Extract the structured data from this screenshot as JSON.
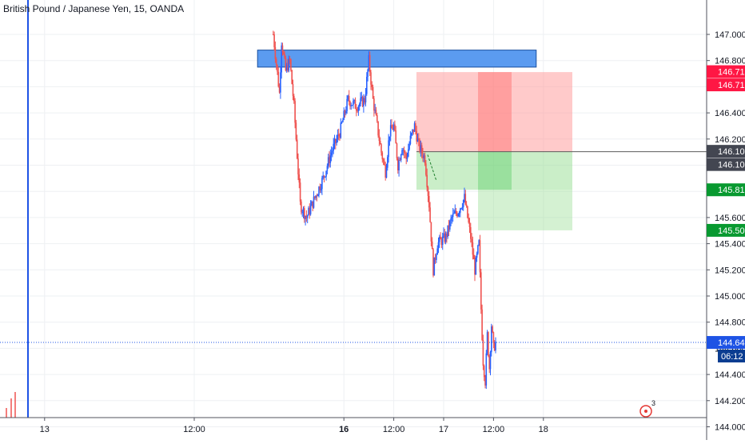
{
  "symbol_title": "British Pound / Japanese Yen, 15, OANDA",
  "colors": {
    "up": "#2962ff",
    "down": "#ef5350",
    "grid": "#eef0f3",
    "axis_text": "#131722",
    "resistance_fill": "#5b9bf0",
    "stop_fill": "#ff9e9e",
    "target_fill": "#9fe09b",
    "badge_red": "#ff1744",
    "badge_dark": "#434651",
    "badge_green": "#089930",
    "badge_blue": "#1e53e5",
    "badge_navy": "#0b3d91"
  },
  "price_badges": {
    "stop_a": "146.712",
    "stop_b": "146.712",
    "entry_a": "146.103",
    "entry_b": "146.103",
    "target_a": "145.812",
    "target_b": "145.502",
    "last_price": "144.645",
    "countdown": "06:12"
  },
  "alert_count": "3",
  "chart_data": {
    "type": "candlestick",
    "title": "British Pound / Japanese Yen, 15, OANDA",
    "y_axis_ticks": [
      144.0,
      144.2,
      144.4,
      144.6,
      144.8,
      145.0,
      145.2,
      145.4,
      145.6,
      145.8,
      146.0,
      146.2,
      146.4,
      146.6,
      146.8,
      147.0
    ],
    "ylim": [
      143.96,
      147.12
    ],
    "x_axis_ticks": [
      "13",
      "12:00",
      "16",
      "12:00",
      "17",
      "12:00",
      "18"
    ],
    "bold_x_ticks": [
      "16"
    ],
    "last_price": 144.645,
    "resistance_zone": {
      "start": "Jan 15 ~09:00",
      "end": "Jan 17 ~16:30",
      "low": 146.75,
      "high": 146.88
    },
    "short_position": {
      "entry": 146.103,
      "stop": 146.712,
      "target_1": 145.812,
      "target_2": 145.502,
      "start": "Jan 16 ~16:30",
      "end": "Jan 17 ~16:30"
    },
    "price_path": [
      [
        "Jan 15 07:00",
        147.0
      ],
      [
        "Jan 15 08:30",
        146.55
      ],
      [
        "Jan 15 09:00",
        146.95
      ],
      [
        "Jan 15 10:00",
        146.72
      ],
      [
        "Jan 15 11:00",
        146.8
      ],
      [
        "Jan 15 12:00",
        146.45
      ],
      [
        "Jan 15 13:30",
        145.7
      ],
      [
        "Jan 15 15:00",
        145.6
      ],
      [
        "Jan 15 17:00",
        145.75
      ],
      [
        "Jan 15 19:00",
        145.9
      ],
      [
        "Jan 15 21:00",
        146.1
      ],
      [
        "Jan 15 23:00",
        146.25
      ],
      [
        "Jan 16 01:00",
        146.5
      ],
      [
        "Jan 16 03:00",
        146.45
      ],
      [
        "Jan 16 05:00",
        146.5
      ],
      [
        "Jan 16 06:00",
        146.8
      ],
      [
        "Jan 16 07:00",
        146.5
      ],
      [
        "Jan 16 09:00",
        146.1
      ],
      [
        "Jan 16 10:00",
        145.95
      ],
      [
        "Jan 16 11:00",
        146.25
      ],
      [
        "Jan 16 12:00",
        146.3
      ],
      [
        "Jan 16 13:00",
        146.0
      ],
      [
        "Jan 16 14:00",
        146.15
      ],
      [
        "Jan 16 15:00",
        146.05
      ],
      [
        "Jan 16 16:00",
        146.2
      ],
      [
        "Jan 16 17:00",
        146.3
      ],
      [
        "Jan 16 18:00",
        146.15
      ],
      [
        "Jan 16 19:30",
        146.05
      ],
      [
        "Jan 16 20:30",
        145.7
      ],
      [
        "Jan 16 21:30",
        145.2
      ],
      [
        "Jan 16 22:30",
        145.4
      ],
      [
        "Jan 17 00:30",
        145.45
      ],
      [
        "Jan 17 02:00",
        145.6
      ],
      [
        "Jan 17 03:30",
        145.65
      ],
      [
        "Jan 17 05:00",
        145.75
      ],
      [
        "Jan 17 06:30",
        145.45
      ],
      [
        "Jan 17 07:30",
        145.2
      ],
      [
        "Jan 17 08:30",
        145.4
      ],
      [
        "Jan 17 09:00",
        144.9
      ],
      [
        "Jan 17 09:30",
        144.5
      ],
      [
        "Jan 17 10:00",
        144.35
      ],
      [
        "Jan 17 10:30",
        144.7
      ],
      [
        "Jan 17 11:00",
        144.45
      ],
      [
        "Jan 17 11:30",
        144.78
      ],
      [
        "Jan 17 12:00",
        144.6
      ],
      [
        "Jan 17 12:30",
        144.645
      ]
    ]
  }
}
